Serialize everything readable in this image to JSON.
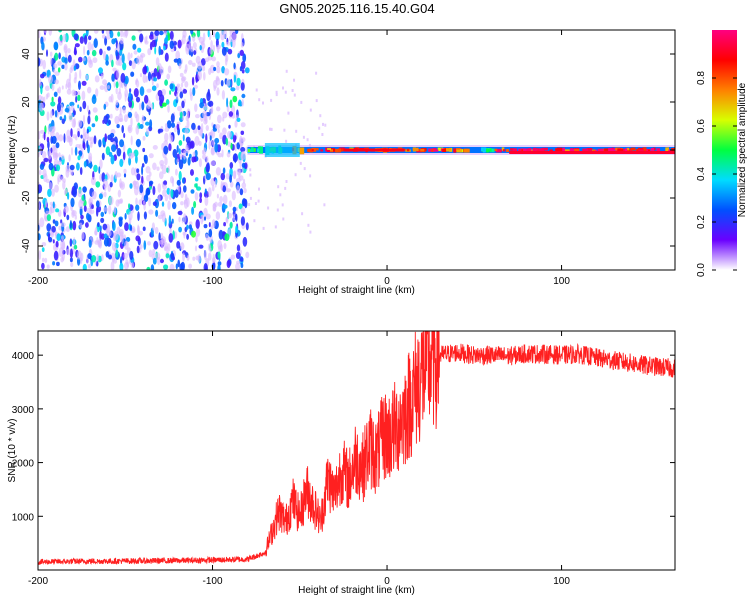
{
  "title": "GN05.2025.116.15.40.G04",
  "chart_data": [
    {
      "type": "heatmap",
      "name": "spectrogram",
      "xlabel": "Height of straight line (km)",
      "ylabel": "Frequency (Hz)",
      "xlim": [
        -200,
        165
      ],
      "ylim": [
        -50,
        50
      ],
      "xticks": [
        -200,
        -100,
        0,
        100
      ],
      "yticks": [
        -40,
        -20,
        0,
        20,
        40
      ],
      "colorbar": {
        "label": "Normalized spectral amplitude",
        "range": [
          0,
          1
        ],
        "ticks": [
          "0.0",
          "0.2",
          "0.4",
          "0.6",
          "0.8"
        ],
        "colors": [
          "#ffffff",
          "#6a00ff",
          "#0050ff",
          "#00dcff",
          "#00ff40",
          "#d8ff00",
          "#ff8000",
          "#ff0000",
          "#ff0080"
        ]
      },
      "regions": [
        {
          "desc": "noise",
          "x": [
            -200,
            -80
          ],
          "freq": [
            -50,
            50
          ],
          "amplitude": [
            0.0,
            0.3
          ]
        },
        {
          "desc": "signal",
          "x": [
            -80,
            165
          ],
          "freq": [
            -3,
            3
          ],
          "amplitude": [
            0.3,
            1.0
          ]
        }
      ]
    },
    {
      "type": "line",
      "name": "snr",
      "xlabel": "Height of straight line (km)",
      "ylabel": "SNR (10 * v/v)",
      "xlim": [
        -200,
        165
      ],
      "ylim": [
        0,
        4450
      ],
      "xticks": [
        -200,
        -100,
        0,
        100
      ],
      "yticks": [
        1000,
        2000,
        3000,
        4000
      ],
      "color": "#ff2020",
      "series": [
        {
          "x": [
            -200,
            -180,
            -160,
            -140,
            -120,
            -100,
            -80,
            -70,
            -66,
            -62,
            -58,
            -54,
            -50,
            -46,
            -42,
            -38,
            -34,
            -30,
            -26,
            -22,
            -18,
            -14,
            -10,
            -6,
            -2,
            2,
            6,
            10,
            14,
            18,
            22,
            26,
            30,
            40,
            50,
            60,
            70,
            80,
            90,
            100,
            110,
            120,
            130,
            140,
            150,
            165
          ],
          "y": [
            150,
            160,
            165,
            170,
            175,
            185,
            200,
            320,
            700,
            1100,
            900,
            1300,
            1000,
            1500,
            1200,
            900,
            1700,
            1400,
            1900,
            1650,
            2100,
            1900,
            2300,
            2100,
            2500,
            2500,
            2700,
            2900,
            3200,
            3500,
            3800,
            3950,
            4000,
            4050,
            4000,
            4000,
            3980,
            4030,
            4020,
            4000,
            4020,
            3950,
            3900,
            3850,
            3800,
            3750
          ]
        }
      ]
    }
  ]
}
